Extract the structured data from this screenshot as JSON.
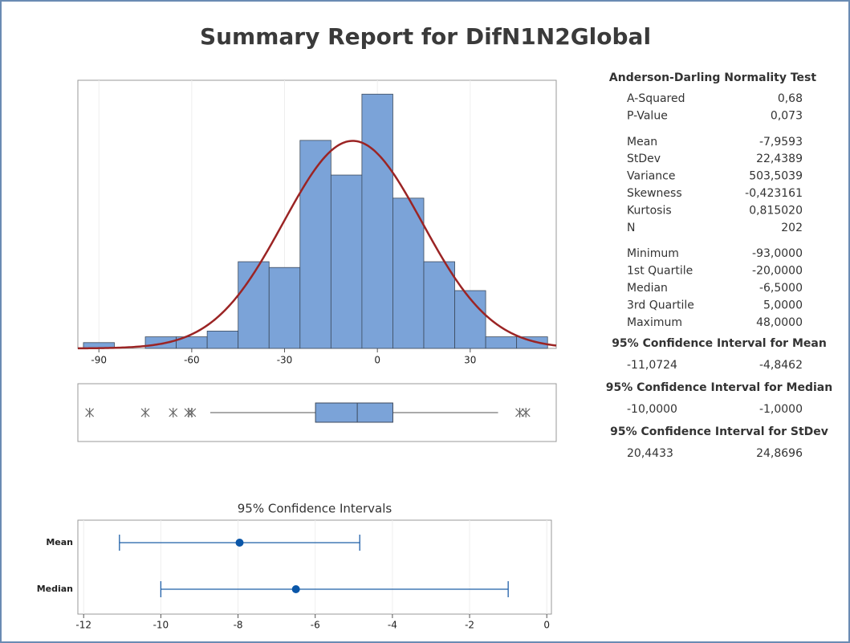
{
  "title": "Summary Report for DifN1N2Global",
  "chart_data": [
    {
      "type": "histogram",
      "bins": [
        -95,
        -85,
        -75,
        -65,
        -55,
        -45,
        -35,
        -25,
        -15,
        -5,
        5,
        15,
        25,
        35,
        45,
        55
      ],
      "counts": [
        1,
        0,
        2,
        2,
        3,
        15,
        14,
        36,
        30,
        44,
        26,
        15,
        10,
        2,
        2
      ],
      "xlim": [
        -96.8,
        57.8
      ],
      "xticks": [
        -90,
        -60,
        -30,
        0,
        30
      ],
      "ylim": [
        0,
        46.4
      ],
      "color": "#7ba3d8",
      "grid": true,
      "fit": {
        "mean": -7.9593,
        "stdev": 22.4389,
        "n": 202,
        "color": "#9b2424"
      }
    },
    {
      "type": "box",
      "xlim": [
        -96.8,
        57.8
      ],
      "q1": -20,
      "median": -6.5,
      "q3": 5,
      "whisker_low": -54,
      "whisker_high": 39,
      "outliers": [
        -93,
        -75,
        -66,
        -61,
        -60,
        46,
        48
      ],
      "color": "#7ba3d8"
    },
    {
      "type": "interval",
      "title": "95% Confidence Intervals",
      "categories": [
        "Mean",
        "Median"
      ],
      "estimates": [
        -7.9593,
        -6.5
      ],
      "lower": [
        -11.0724,
        -10
      ],
      "upper": [
        -4.8462,
        -1
      ],
      "xlim": [
        -12.15,
        0.12
      ],
      "xticks": [
        -12,
        -10,
        -8,
        -6,
        -4,
        -2,
        0
      ],
      "color": "#1f5fa8",
      "grid": true
    }
  ],
  "stats": {
    "heading": "Anderson-Darling Normality Test",
    "groups": [
      [
        {
          "label": "A-Squared",
          "value": "0,68"
        },
        {
          "label": "P-Value",
          "value": "0,073"
        }
      ],
      [
        {
          "label": "Mean",
          "value": "-7,9593"
        },
        {
          "label": "StDev",
          "value": "22,4389"
        },
        {
          "label": "Variance",
          "value": "503,5039"
        },
        {
          "label": "Skewness",
          "value": "-0,423161"
        },
        {
          "label": "Kurtosis",
          "value": "0,815020"
        },
        {
          "label": "N",
          "value": "202"
        }
      ],
      [
        {
          "label": "Minimum",
          "value": "-93,0000"
        },
        {
          "label": "1st Quartile",
          "value": "-20,0000"
        },
        {
          "label": "Median",
          "value": "-6,5000"
        },
        {
          "label": "3rd Quartile",
          "value": "5,0000"
        },
        {
          "label": "Maximum",
          "value": "48,0000"
        }
      ]
    ],
    "intervals": [
      {
        "heading": "95% Confidence Interval for Mean",
        "lower": "-11,0724",
        "upper": "-4,8462"
      },
      {
        "heading": "95% Confidence Interval for Median",
        "lower": "-10,0000",
        "upper": "-1,0000"
      },
      {
        "heading": "95% Confidence Interval for StDev",
        "lower": "20,4433",
        "upper": "24,8696"
      }
    ]
  }
}
